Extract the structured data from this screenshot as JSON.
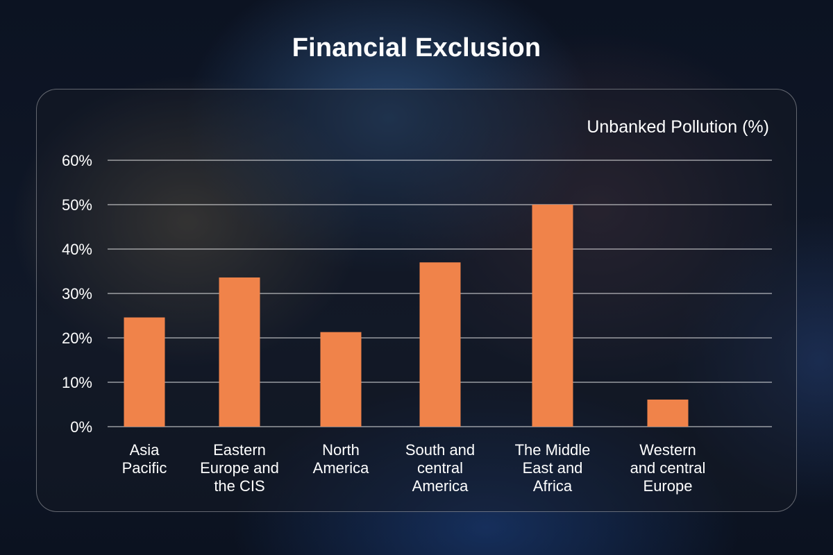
{
  "title": "Financial Exclusion",
  "chart_data": {
    "type": "bar",
    "title": "Financial Exclusion",
    "ylabel": "Unbanked Pollution (%)",
    "xlabel": "",
    "categories": [
      [
        "Asia",
        "Pacific"
      ],
      [
        "Eastern",
        "Europe and",
        "the CIS"
      ],
      [
        "North",
        "America"
      ],
      [
        "South and",
        "central",
        "America"
      ],
      [
        "The Middle",
        "East and",
        "Africa"
      ],
      [
        "Western",
        "and central",
        "Europe"
      ]
    ],
    "values": [
      24.6,
      33.6,
      21.3,
      37.0,
      50.0,
      6.1
    ],
    "ylim": [
      0,
      60
    ],
    "yticks": [
      "0%",
      "10%",
      "20%",
      "30%",
      "40%",
      "50%",
      "60%"
    ],
    "grid": true,
    "bar_color": "#f0834a"
  }
}
